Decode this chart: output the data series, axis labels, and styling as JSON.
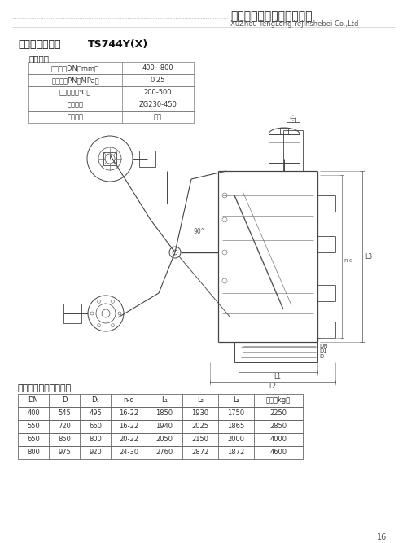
{
  "page_bg": "#ffffff",
  "company_cn": "徐州腾龙冶金设备有限公司",
  "company_en": "XuZhou TengLong YeJinshebei Co.,Ltd",
  "product_label": "【某气放散阀】",
  "product_model": "TS744Y(X)",
  "section1_title": "性能规范",
  "spec_rows": [
    [
      "公称通径DN（mm）",
      "400∼800"
    ],
    [
      "工作压力PN（MPa）",
      "0.25"
    ],
    [
      "适用温度（℃）",
      "200-500"
    ],
    [
      "阀体材质",
      "ZG230-450"
    ],
    [
      "适用介质",
      "某气"
    ]
  ],
  "section2_title": "主要尺寸、参数及质量",
  "dim_headers": [
    "DN",
    "D",
    "D₁",
    "n-d",
    "L₁",
    "L₂",
    "L₃",
    "质量（kg）"
  ],
  "dim_rows": [
    [
      "400",
      "545",
      "495",
      "16-22",
      "1850",
      "1930",
      "1750",
      "2250"
    ],
    [
      "550",
      "720",
      "660",
      "16-22",
      "1940",
      "2025",
      "1865",
      "2850"
    ],
    [
      "650",
      "850",
      "800",
      "20-22",
      "2050",
      "2150",
      "2000",
      "4000"
    ],
    [
      "800",
      "975",
      "920",
      "24-30",
      "2760",
      "2872",
      "1872",
      "4600"
    ]
  ],
  "page_number": "16"
}
